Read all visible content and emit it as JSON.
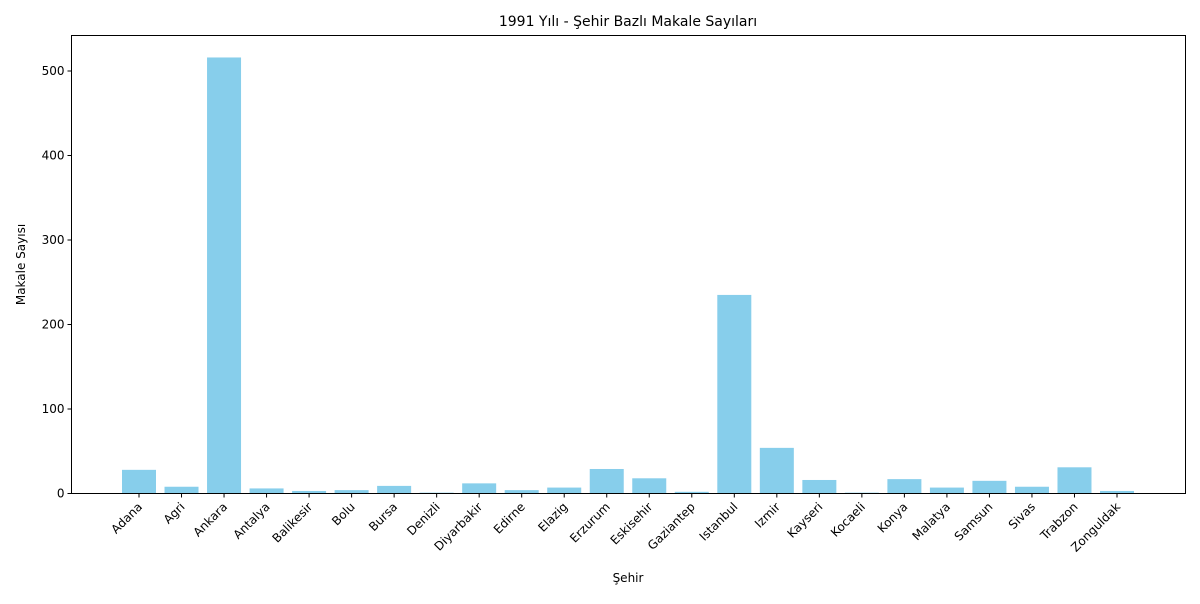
{
  "chart_data": {
    "type": "bar",
    "title": "1991 Yılı - Şehir Bazlı Makale Sayıları",
    "xlabel": "Şehir",
    "ylabel": "Makale Sayısı",
    "categories": [
      "Adana",
      "Agri",
      "Ankara",
      "Antalya",
      "Balikesir",
      "Bolu",
      "Bursa",
      "Denizli",
      "Diyarbakir",
      "Edirne",
      "Elazig",
      "Erzurum",
      "Eskisehir",
      "Gaziantep",
      "Istanbul",
      "Izmir",
      "Kayseri",
      "Kocaeli",
      "Konya",
      "Malatya",
      "Samsun",
      "Sivas",
      "Trabzon",
      "Zonguldak"
    ],
    "values": [
      28,
      8,
      516,
      6,
      3,
      4,
      9,
      1,
      12,
      4,
      7,
      29,
      18,
      2,
      235,
      54,
      16,
      1,
      17,
      7,
      15,
      8,
      31,
      3
    ],
    "ylim": [
      0,
      542
    ],
    "yticks": [
      0,
      100,
      200,
      300,
      400,
      500
    ],
    "bar_color": "#87CEEB",
    "grid": false,
    "legend": "none"
  }
}
